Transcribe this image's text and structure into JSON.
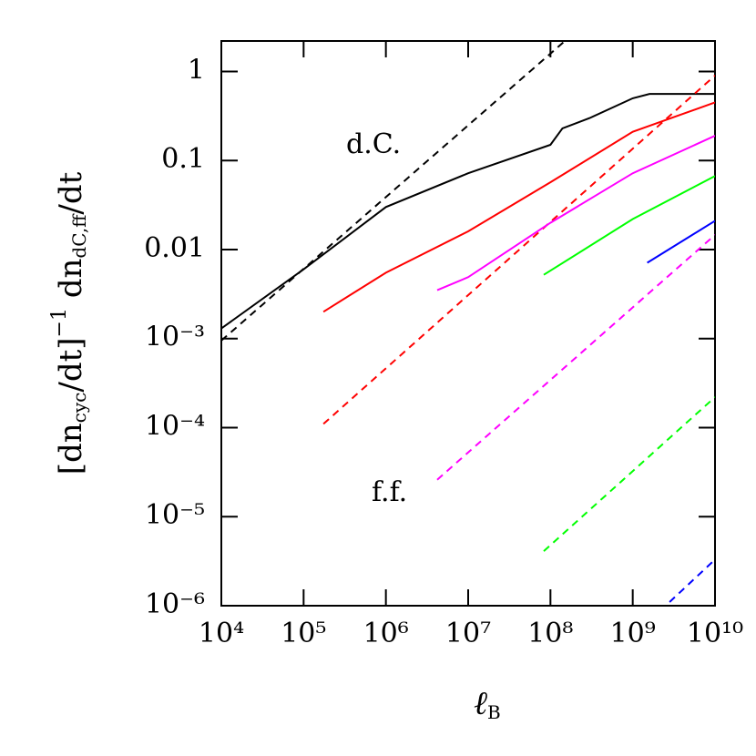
{
  "chart_data": {
    "type": "line",
    "xlog": true,
    "ylog": true,
    "xlim": [
      10000,
      10000000000
    ],
    "ylim": [
      1e-06,
      2.2
    ],
    "xticks": [
      {
        "value": 10000,
        "label": "10⁴"
      },
      {
        "value": 100000,
        "label": "10⁵"
      },
      {
        "value": 1000000,
        "label": "10⁶"
      },
      {
        "value": 10000000,
        "label": "10⁷"
      },
      {
        "value": 100000000,
        "label": "10⁸"
      },
      {
        "value": 1000000000,
        "label": "10⁹"
      },
      {
        "value": 10000000000,
        "label": "10¹⁰"
      }
    ],
    "yticks": [
      {
        "value": 1e-06,
        "label": "10⁻⁶"
      },
      {
        "value": 1e-05,
        "label": "10⁻⁵"
      },
      {
        "value": 0.0001,
        "label": "10⁻⁴"
      },
      {
        "value": 0.001,
        "label": "10⁻³"
      },
      0.01,
      0.1,
      1
    ],
    "xlabel_parts": [
      "ℓ",
      "B"
    ],
    "ylabel_parts": [
      "[dn",
      "cyc",
      "/dt]",
      "−1",
      " dn",
      "dC,ff",
      "/dt"
    ],
    "annotations": [
      "d.C.",
      "f.f."
    ],
    "series": [
      {
        "color": "#000000",
        "dash": false,
        "x": [
          10000,
          100000,
          1000000,
          10000000,
          100000000,
          140000000,
          300000000,
          1000000000,
          1600000000,
          10000000000
        ],
        "values": [
          0.0013,
          0.006,
          0.03,
          0.072,
          0.15,
          0.23,
          0.3,
          0.5,
          0.56,
          0.56
        ]
      },
      {
        "color": "#000000",
        "dash": true,
        "x": [
          10000,
          150000000
        ],
        "values": [
          0.00095,
          2.2
        ]
      },
      {
        "color": "#ff0000",
        "dash": false,
        "x": [
          174000,
          1000000,
          10000000,
          100000000,
          1000000000,
          10000000000
        ],
        "values": [
          0.002,
          0.0055,
          0.016,
          0.057,
          0.21,
          0.45
        ]
      },
      {
        "color": "#ff0000",
        "dash": true,
        "x": [
          174000,
          10000000000
        ],
        "values": [
          0.00011,
          0.9
        ]
      },
      {
        "color": "#ff00ff",
        "dash": false,
        "x": [
          4200000,
          10000000,
          100000000,
          1000000000,
          10000000000
        ],
        "values": [
          0.0035,
          0.0049,
          0.02,
          0.072,
          0.19
        ]
      },
      {
        "color": "#ff00ff",
        "dash": true,
        "x": [
          4200000,
          10000000000
        ],
        "values": [
          2.6e-05,
          0.0146
        ]
      },
      {
        "color": "#00ff00",
        "dash": false,
        "x": [
          83000000,
          1000000000,
          10000000000
        ],
        "values": [
          0.0052,
          0.022,
          0.067
        ]
      },
      {
        "color": "#00ff00",
        "dash": true,
        "x": [
          83000000,
          10000000000
        ],
        "values": [
          4.1e-06,
          0.00022
        ]
      },
      {
        "color": "#0000ff",
        "dash": false,
        "x": [
          1500000000,
          10000000000
        ],
        "values": [
          0.0071,
          0.021
        ]
      },
      {
        "color": "#0000ff",
        "dash": true,
        "x": [
          2800000000,
          10000000000
        ],
        "values": [
          1.1e-06,
          3.3e-06
        ]
      }
    ]
  }
}
